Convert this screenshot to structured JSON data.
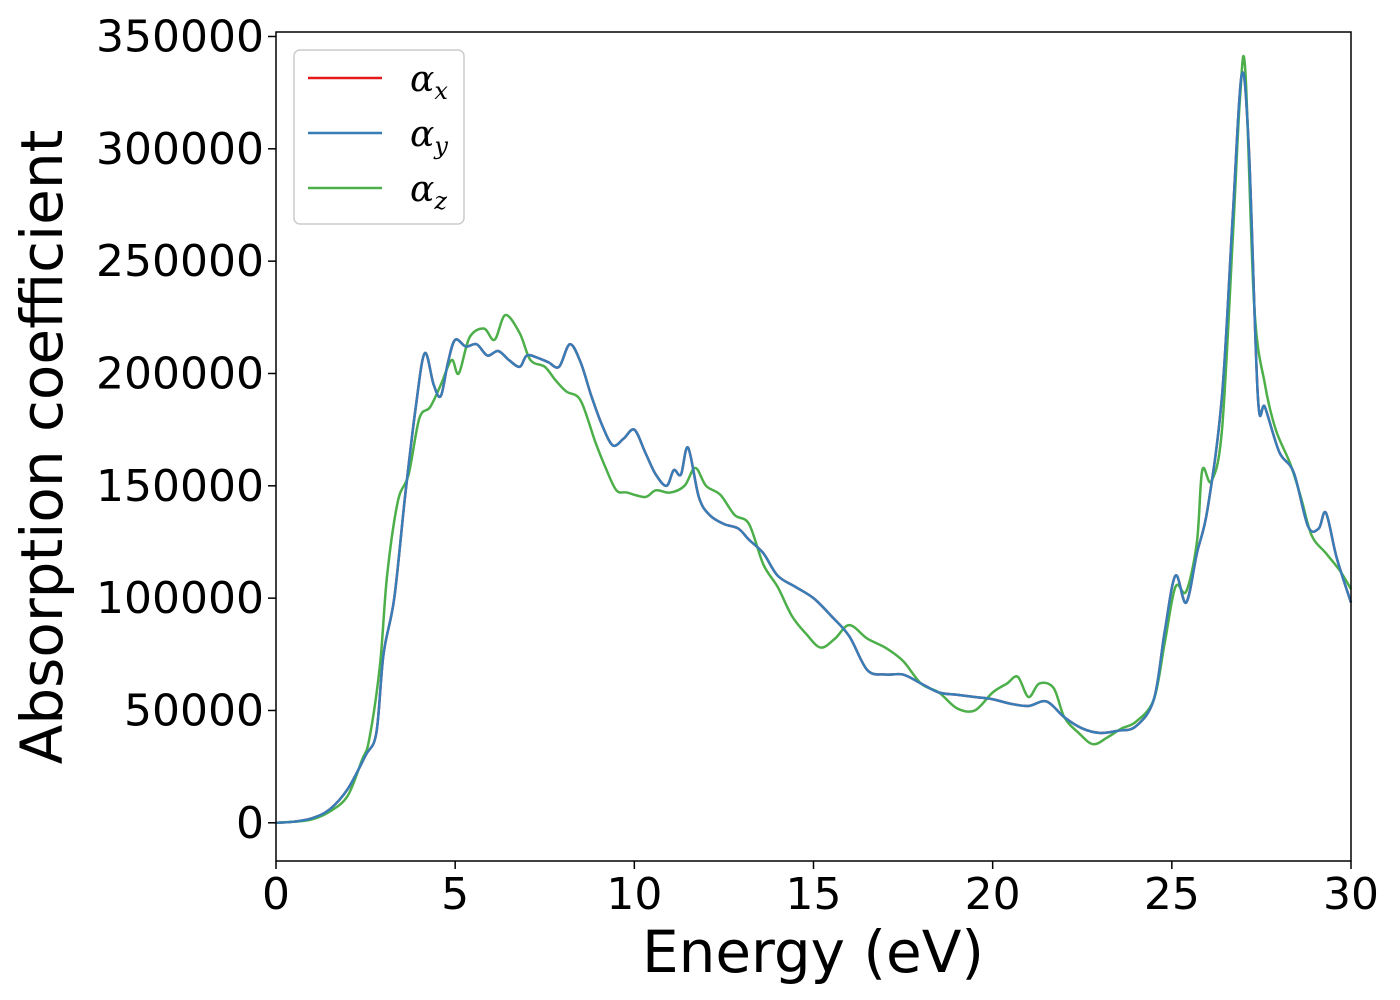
{
  "chart_data": {
    "type": "line",
    "xlabel": "Energy (eV)",
    "ylabel": "Absorption coefficient",
    "xlim": [
      0,
      30
    ],
    "ylim": [
      -17000,
      352000
    ],
    "x_ticks": [
      0,
      5,
      10,
      15,
      20,
      25,
      30
    ],
    "y_ticks": [
      0,
      50000,
      100000,
      150000,
      200000,
      250000,
      300000,
      350000
    ],
    "legend_position": "top-left",
    "legend": [
      {
        "symbol": "α",
        "sub": "x",
        "color": "#e41a1c"
      },
      {
        "symbol": "α",
        "sub": "y",
        "color": "#377eb8"
      },
      {
        "symbol": "α",
        "sub": "z",
        "color": "#4daf4a"
      }
    ],
    "series": [
      {
        "id": "alpha_x",
        "color": "#e41a1c",
        "points": [
          [
            0,
            0
          ],
          [
            0.5,
            500
          ],
          [
            1,
            2000
          ],
          [
            1.5,
            6000
          ],
          [
            2,
            15000
          ],
          [
            2.5,
            30000
          ],
          [
            2.8,
            40000
          ],
          [
            3,
            75000
          ],
          [
            3.3,
            100000
          ],
          [
            3.6,
            145000
          ],
          [
            3.9,
            185000
          ],
          [
            4.15,
            209000
          ],
          [
            4.4,
            195000
          ],
          [
            4.6,
            190000
          ],
          [
            4.8,
            205000
          ],
          [
            5,
            215000
          ],
          [
            5.3,
            212000
          ],
          [
            5.6,
            213000
          ],
          [
            5.9,
            208000
          ],
          [
            6.2,
            210000
          ],
          [
            6.5,
            206000
          ],
          [
            6.8,
            203000
          ],
          [
            7,
            208000
          ],
          [
            7.3,
            207000
          ],
          [
            7.6,
            205000
          ],
          [
            7.9,
            203000
          ],
          [
            8.2,
            213000
          ],
          [
            8.5,
            205000
          ],
          [
            8.8,
            190000
          ],
          [
            9.1,
            177000
          ],
          [
            9.4,
            168000
          ],
          [
            9.7,
            171000
          ],
          [
            10,
            175000
          ],
          [
            10.3,
            165000
          ],
          [
            10.6,
            155000
          ],
          [
            10.9,
            150000
          ],
          [
            11.1,
            157000
          ],
          [
            11.3,
            155000
          ],
          [
            11.5,
            167000
          ],
          [
            11.8,
            145000
          ],
          [
            12.1,
            137000
          ],
          [
            12.5,
            133000
          ],
          [
            12.9,
            131000
          ],
          [
            13.2,
            126000
          ],
          [
            13.6,
            120000
          ],
          [
            14,
            110000
          ],
          [
            14.5,
            105000
          ],
          [
            15,
            100000
          ],
          [
            15.5,
            92000
          ],
          [
            16,
            83000
          ],
          [
            16.5,
            68000
          ],
          [
            17,
            66000
          ],
          [
            17.5,
            66000
          ],
          [
            18,
            62000
          ],
          [
            18.5,
            58000
          ],
          [
            19,
            57000
          ],
          [
            19.5,
            56000
          ],
          [
            20,
            55000
          ],
          [
            20.5,
            53000
          ],
          [
            21,
            52000
          ],
          [
            21.5,
            54000
          ],
          [
            22,
            47000
          ],
          [
            22.5,
            42000
          ],
          [
            23,
            40000
          ],
          [
            23.5,
            41000
          ],
          [
            24,
            43000
          ],
          [
            24.5,
            55000
          ],
          [
            24.8,
            85000
          ],
          [
            25.1,
            110000
          ],
          [
            25.4,
            98000
          ],
          [
            25.7,
            120000
          ],
          [
            26,
            140000
          ],
          [
            26.4,
            190000
          ],
          [
            26.7,
            270000
          ],
          [
            26.95,
            333000
          ],
          [
            27.15,
            300000
          ],
          [
            27.4,
            190000
          ],
          [
            27.6,
            185000
          ],
          [
            28,
            165000
          ],
          [
            28.4,
            156000
          ],
          [
            28.8,
            132000
          ],
          [
            29.1,
            131000
          ],
          [
            29.3,
            138000
          ],
          [
            29.6,
            118000
          ],
          [
            30,
            98000
          ]
        ]
      },
      {
        "id": "alpha_y",
        "color": "#377eb8",
        "points": [
          [
            0,
            0
          ],
          [
            0.5,
            500
          ],
          [
            1,
            2000
          ],
          [
            1.5,
            6000
          ],
          [
            2,
            15000
          ],
          [
            2.5,
            30000
          ],
          [
            2.8,
            40000
          ],
          [
            3,
            75000
          ],
          [
            3.3,
            100000
          ],
          [
            3.6,
            145000
          ],
          [
            3.9,
            185000
          ],
          [
            4.15,
            209000
          ],
          [
            4.4,
            195000
          ],
          [
            4.6,
            190000
          ],
          [
            4.8,
            205000
          ],
          [
            5,
            215000
          ],
          [
            5.3,
            212000
          ],
          [
            5.6,
            213000
          ],
          [
            5.9,
            208000
          ],
          [
            6.2,
            210000
          ],
          [
            6.5,
            206000
          ],
          [
            6.8,
            203000
          ],
          [
            7,
            208000
          ],
          [
            7.3,
            207000
          ],
          [
            7.6,
            205000
          ],
          [
            7.9,
            203000
          ],
          [
            8.2,
            213000
          ],
          [
            8.5,
            205000
          ],
          [
            8.8,
            190000
          ],
          [
            9.1,
            177000
          ],
          [
            9.4,
            168000
          ],
          [
            9.7,
            171000
          ],
          [
            10,
            175000
          ],
          [
            10.3,
            165000
          ],
          [
            10.6,
            155000
          ],
          [
            10.9,
            150000
          ],
          [
            11.1,
            157000
          ],
          [
            11.3,
            155000
          ],
          [
            11.5,
            167000
          ],
          [
            11.8,
            145000
          ],
          [
            12.1,
            137000
          ],
          [
            12.5,
            133000
          ],
          [
            12.9,
            131000
          ],
          [
            13.2,
            126000
          ],
          [
            13.6,
            120000
          ],
          [
            14,
            110000
          ],
          [
            14.5,
            105000
          ],
          [
            15,
            100000
          ],
          [
            15.5,
            92000
          ],
          [
            16,
            83000
          ],
          [
            16.5,
            68000
          ],
          [
            17,
            66000
          ],
          [
            17.5,
            66000
          ],
          [
            18,
            62000
          ],
          [
            18.5,
            58000
          ],
          [
            19,
            57000
          ],
          [
            19.5,
            56000
          ],
          [
            20,
            55000
          ],
          [
            20.5,
            53000
          ],
          [
            21,
            52000
          ],
          [
            21.5,
            54000
          ],
          [
            22,
            47000
          ],
          [
            22.5,
            42000
          ],
          [
            23,
            40000
          ],
          [
            23.5,
            41000
          ],
          [
            24,
            43000
          ],
          [
            24.5,
            55000
          ],
          [
            24.8,
            85000
          ],
          [
            25.1,
            110000
          ],
          [
            25.4,
            98000
          ],
          [
            25.7,
            120000
          ],
          [
            26,
            140000
          ],
          [
            26.4,
            190000
          ],
          [
            26.7,
            270000
          ],
          [
            26.95,
            333000
          ],
          [
            27.15,
            300000
          ],
          [
            27.4,
            190000
          ],
          [
            27.6,
            185000
          ],
          [
            28,
            165000
          ],
          [
            28.4,
            156000
          ],
          [
            28.8,
            132000
          ],
          [
            29.1,
            131000
          ],
          [
            29.3,
            138000
          ],
          [
            29.6,
            118000
          ],
          [
            30,
            98000
          ]
        ]
      },
      {
        "id": "alpha_z",
        "color": "#4daf4a",
        "points": [
          [
            0,
            0
          ],
          [
            0.5,
            500
          ],
          [
            1,
            1500
          ],
          [
            1.5,
            5000
          ],
          [
            2,
            12000
          ],
          [
            2.4,
            28000
          ],
          [
            2.6,
            37000
          ],
          [
            2.9,
            70000
          ],
          [
            3.1,
            110000
          ],
          [
            3.4,
            143000
          ],
          [
            3.7,
            155000
          ],
          [
            4,
            180000
          ],
          [
            4.3,
            185000
          ],
          [
            4.6,
            195000
          ],
          [
            4.9,
            206000
          ],
          [
            5.1,
            200000
          ],
          [
            5.4,
            216000
          ],
          [
            5.8,
            220000
          ],
          [
            6.1,
            215000
          ],
          [
            6.4,
            226000
          ],
          [
            6.8,
            218000
          ],
          [
            7.1,
            206000
          ],
          [
            7.5,
            203000
          ],
          [
            7.8,
            197000
          ],
          [
            8.1,
            192000
          ],
          [
            8.5,
            188000
          ],
          [
            8.9,
            170000
          ],
          [
            9.2,
            158000
          ],
          [
            9.5,
            148000
          ],
          [
            9.8,
            147000
          ],
          [
            10.3,
            145000
          ],
          [
            10.6,
            148000
          ],
          [
            11,
            147000
          ],
          [
            11.4,
            150000
          ],
          [
            11.7,
            158000
          ],
          [
            12,
            150000
          ],
          [
            12.4,
            146000
          ],
          [
            12.8,
            137000
          ],
          [
            13.2,
            133000
          ],
          [
            13.6,
            115000
          ],
          [
            14,
            105000
          ],
          [
            14.4,
            92000
          ],
          [
            14.8,
            84000
          ],
          [
            15.2,
            78000
          ],
          [
            15.6,
            82000
          ],
          [
            16,
            88000
          ],
          [
            16.5,
            82000
          ],
          [
            17,
            78000
          ],
          [
            17.5,
            72000
          ],
          [
            18,
            62000
          ],
          [
            18.5,
            58000
          ],
          [
            19,
            51000
          ],
          [
            19.5,
            50000
          ],
          [
            20,
            58000
          ],
          [
            20.4,
            62000
          ],
          [
            20.7,
            65000
          ],
          [
            21,
            56000
          ],
          [
            21.3,
            62000
          ],
          [
            21.7,
            60000
          ],
          [
            22,
            47000
          ],
          [
            22.4,
            40000
          ],
          [
            22.8,
            35000
          ],
          [
            23.2,
            38000
          ],
          [
            23.6,
            42000
          ],
          [
            24,
            45000
          ],
          [
            24.5,
            55000
          ],
          [
            24.8,
            80000
          ],
          [
            25.1,
            105000
          ],
          [
            25.4,
            103000
          ],
          [
            25.7,
            125000
          ],
          [
            25.85,
            157000
          ],
          [
            26.1,
            152000
          ],
          [
            26.4,
            175000
          ],
          [
            26.7,
            260000
          ],
          [
            26.9,
            322000
          ],
          [
            27.05,
            335000
          ],
          [
            27.3,
            230000
          ],
          [
            27.6,
            195000
          ],
          [
            27.9,
            175000
          ],
          [
            28.3,
            160000
          ],
          [
            28.6,
            145000
          ],
          [
            28.9,
            128000
          ],
          [
            29.3,
            120000
          ],
          [
            29.7,
            112000
          ],
          [
            30,
            104000
          ]
        ]
      }
    ]
  }
}
